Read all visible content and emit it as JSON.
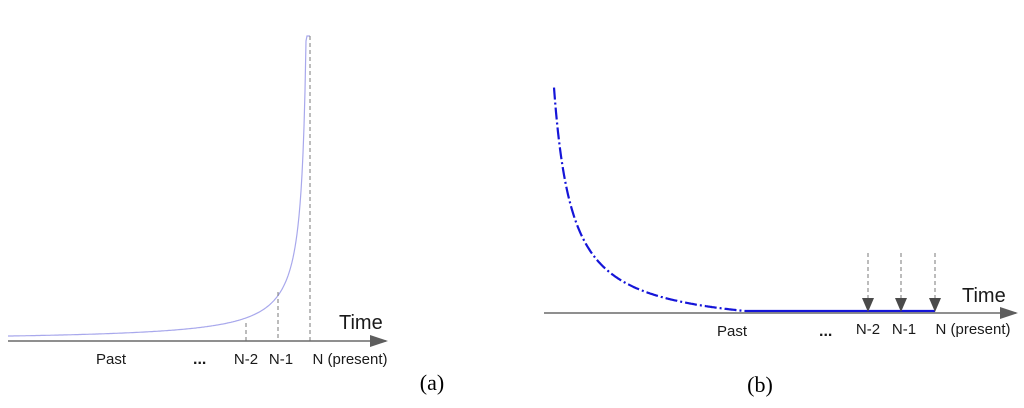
{
  "panel_a": {
    "panel_label": "(a)",
    "axis_title": "Time",
    "past_label": "Past",
    "ellipsis": "...",
    "ticks": [
      "N-2",
      "N-1",
      "N (present)"
    ]
  },
  "panel_b": {
    "panel_label": "(b)",
    "axis_title": "Time",
    "past_label": "Past",
    "ellipsis": "...",
    "ticks": [
      "N-2",
      "N-1",
      "N (present)"
    ]
  },
  "colors": {
    "axis": "#6a6a6a",
    "curve_a": "#a8a8ec",
    "curve_b": "#1515d8",
    "dashes": "#7a7a7a",
    "arrows": "#4a4a4a"
  }
}
